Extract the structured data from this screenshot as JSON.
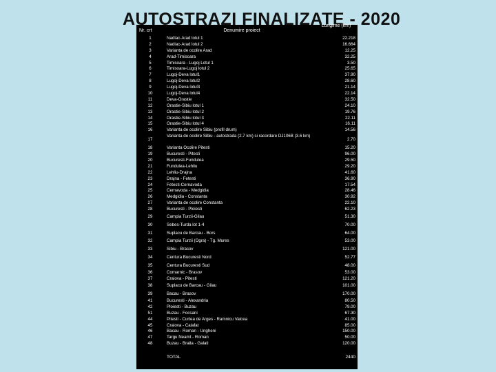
{
  "title": "AUTOSTRAZI FINALIZATE - 2020",
  "headers": {
    "nr": "Nr. crt",
    "name": "Denumire proiect",
    "length": "Lungime (km)"
  },
  "rows": [
    {
      "nr": "1",
      "name": "Nadlac-Arad lotul 1",
      "len": "22.218",
      "h": "n"
    },
    {
      "nr": "2",
      "name": "Nadlac-Arad lotul 2",
      "len": "16.664",
      "h": "n"
    },
    {
      "nr": "3",
      "name": "Varianta de ocolire Arad",
      "len": "12.25",
      "h": "n"
    },
    {
      "nr": "4",
      "name": "Arad-Timisoara",
      "len": "32.25",
      "h": "n"
    },
    {
      "nr": "5",
      "name": "Timisoara - Lugoj Lotul 1",
      "len": "3.50",
      "h": "n"
    },
    {
      "nr": "6",
      "name": "Timisoara-Lugoj lotul 2",
      "len": "25.65",
      "h": "n"
    },
    {
      "nr": "7",
      "name": "Lugoj-Deva lotul1",
      "len": "37.90",
      "h": "n"
    },
    {
      "nr": "8",
      "name": "Lugoj-Deva lotul2",
      "len": "28.60",
      "h": "n"
    },
    {
      "nr": "9",
      "name": "Lugoj-Deva lotul3",
      "len": "21.14",
      "h": "n"
    },
    {
      "nr": "10",
      "name": "Lugoj-Deva lotul4",
      "len": "22.14",
      "h": "n"
    },
    {
      "nr": "11",
      "name": "Deva-Orastie",
      "len": "32.50",
      "h": "n"
    },
    {
      "nr": "12",
      "name": "Orastie-Sibiu lotul 1",
      "len": "24.10",
      "h": "n"
    },
    {
      "nr": "13",
      "name": "Orastie-Sibiu lotul 2",
      "len": "19.76",
      "h": "n"
    },
    {
      "nr": "14",
      "name": "Orastie-Sibiu lotul 3",
      "len": "22.11",
      "h": "n"
    },
    {
      "nr": "15",
      "name": "Orastie-Sibiu lotul 4",
      "len": "16.11",
      "h": "n"
    },
    {
      "nr": "16",
      "name": "Varianta de ocolire Sibiu (profil drum)",
      "len": "14.56",
      "h": "n"
    },
    {
      "nr": "17",
      "name": "Varianta de ocolire Sibiu - autostrada (2.7 km) si racordare DJ106B (3.6 km)",
      "len": "2.70",
      "h": "t"
    },
    {
      "nr": "18",
      "name": "Varianta Ocolire Pitesti",
      "len": "15.20",
      "h": "n"
    },
    {
      "nr": "19",
      "name": "Bucuresti - Pitesti",
      "len": "96.00",
      "h": "n"
    },
    {
      "nr": "20",
      "name": "Bucuresti-Fundulea",
      "len": "29.50",
      "h": "n"
    },
    {
      "nr": "21",
      "name": "Fundulea-Lehliu",
      "len": "29.20",
      "h": "n"
    },
    {
      "nr": "22",
      "name": "Lehliu-Drajna",
      "len": "41.60",
      "h": "n"
    },
    {
      "nr": "23",
      "name": "Drajna - Fetesti",
      "len": "36.90",
      "h": "n"
    },
    {
      "nr": "24",
      "name": "Fetesti-Cernavoda",
      "len": "17.54",
      "h": "n"
    },
    {
      "nr": "25",
      "name": "Cernavoda - Medgidia",
      "len": "28.46",
      "h": "n"
    },
    {
      "nr": "26",
      "name": "Medgidia - Constanta",
      "len": "30.92",
      "h": "n"
    },
    {
      "nr": "27",
      "name": "Varianta de ocolire Constanta",
      "len": "22.10",
      "h": "n"
    },
    {
      "nr": "28",
      "name": "Bucuresti - Ploiesti",
      "len": "62.23",
      "h": "n"
    },
    {
      "nr": "29",
      "name": "Campia Turzii-Gilau",
      "len": "51.30",
      "h": "m"
    },
    {
      "nr": "30",
      "name": "Sebes-Turda lot 1-4",
      "len": "70.00",
      "h": "m"
    },
    {
      "nr": "31",
      "name": "Suplacu de Barcau - Bors",
      "len": "64.00",
      "h": "m"
    },
    {
      "nr": "32",
      "name": "Campia Turzii (Ogra) - Tg. Mures",
      "len": "53.00",
      "h": "m"
    },
    {
      "nr": "33",
      "name": "Sibiu - Brasov",
      "len": "121.00",
      "h": "m"
    },
    {
      "nr": "34",
      "name": "Centura Bucuresti Nord",
      "len": "52.77",
      "h": "m"
    },
    {
      "nr": "35",
      "name": "Centura Bucuresti Sud",
      "len": "48.00",
      "h": "m"
    },
    {
      "nr": "36",
      "name": "Comarnic - Brasov",
      "len": "53.00",
      "h": "n"
    },
    {
      "nr": "37",
      "name": "Craiova - Pitesti",
      "len": "121.20",
      "h": "n"
    },
    {
      "nr": "38",
      "name": "Suplacu de Barcau - Gilau",
      "len": "101.00",
      "h": "m"
    },
    {
      "nr": "39",
      "name": "Bacau - Brasov",
      "len": "170.00",
      "h": "m"
    },
    {
      "nr": "41",
      "name": "Bucuresti - Alexandria",
      "len": "80.50",
      "h": "n"
    },
    {
      "nr": "42",
      "name": "Ploiesti - Buzau",
      "len": "79.00",
      "h": "n"
    },
    {
      "nr": "51",
      "name": "Buzau - Focsani",
      "len": "67.30",
      "h": "n"
    },
    {
      "nr": "44",
      "name": "Pitesti - Curtea de Arges - Ramnicu Valcea",
      "len": "41.00",
      "h": "n"
    },
    {
      "nr": "45",
      "name": "Craiova - Calafat",
      "len": "85.00",
      "h": "n"
    },
    {
      "nr": "46",
      "name": "Bacau - Roman - Ungheni",
      "len": "150.00",
      "h": "n"
    },
    {
      "nr": "47",
      "name": "Targu Neamt - Roman",
      "len": "50.00",
      "h": "n"
    },
    {
      "nr": "48",
      "name": "Buzau - Braila - Galati",
      "len": "120.00",
      "h": "n"
    }
  ],
  "total": {
    "label": "TOTAL",
    "value": "2440"
  }
}
